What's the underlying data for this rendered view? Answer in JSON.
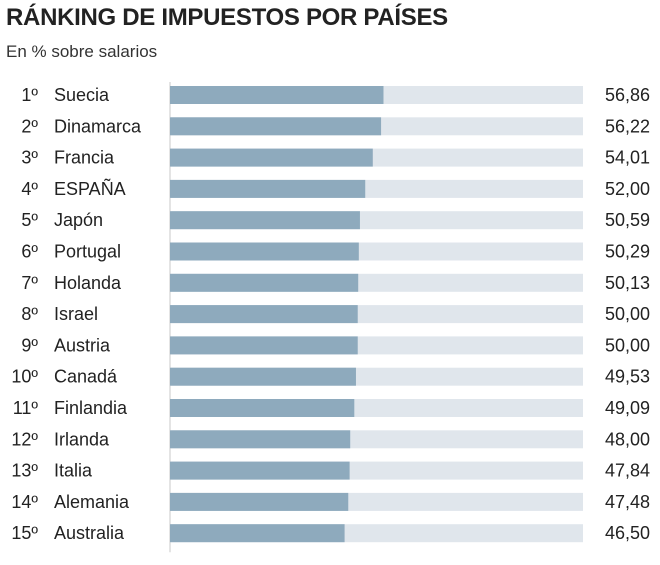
{
  "header": {
    "title": "RÁNKING DE IMPUESTOS POR PAÍSES",
    "subtitle": "En % sobre salarios"
  },
  "colors": {
    "bar": "#8eaabd",
    "track": "#e0e6ec",
    "axis": "#c8c8c8",
    "text": "#222222"
  },
  "chart_data": {
    "type": "bar",
    "orientation": "horizontal",
    "title": "RÁNKING DE IMPUESTOS POR PAÍSES",
    "subtitle": "En % sobre salarios",
    "ranks": [
      "1º",
      "2º",
      "3º",
      "4º",
      "5º",
      "6º",
      "7º",
      "8º",
      "9º",
      "10º",
      "11º",
      "12º",
      "13º",
      "14º",
      "15º"
    ],
    "categories": [
      "Suecia",
      "Dinamarca",
      "Francia",
      "ESPAÑA",
      "Japón",
      "Portugal",
      "Holanda",
      "Israel",
      "Austria",
      "Canadá",
      "Finlandia",
      "Irlanda",
      "Italia",
      "Alemania",
      "Australia"
    ],
    "values": [
      56.86,
      56.22,
      54.01,
      52.0,
      50.59,
      50.29,
      50.13,
      50.0,
      50.0,
      49.53,
      49.09,
      48.0,
      47.84,
      47.48,
      46.5
    ],
    "value_labels": [
      "56,86",
      "56,22",
      "54,01",
      "52,00",
      "50,59",
      "50,29",
      "50,13",
      "50,00",
      "50,00",
      "49,53",
      "49,09",
      "48,00",
      "47,84",
      "47,48",
      "46,50"
    ],
    "xlim": [
      0,
      110
    ],
    "xlabel": "",
    "ylabel": "",
    "grid": false,
    "legend": "none"
  }
}
